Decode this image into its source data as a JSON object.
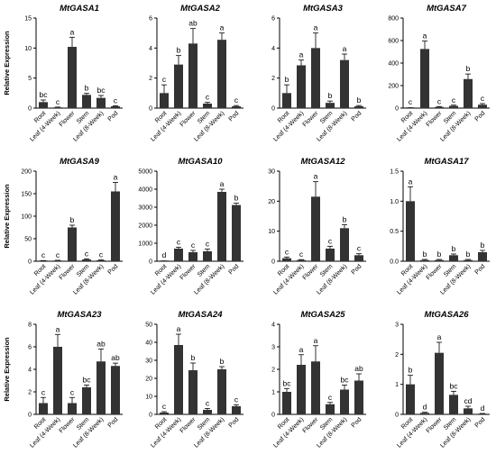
{
  "figure": {
    "ylabel": "Relative Expression",
    "categories": [
      "Root",
      "Leaf (4-Week)",
      "Flower",
      "Stem",
      "Leaf (8-Week)",
      "Pod"
    ]
  },
  "chart_data": [
    {
      "type": "bar",
      "title": "MtGASA1",
      "categories": [
        "Root",
        "Leaf (4-Week)",
        "Flower",
        "Stem",
        "Leaf (8-Week)",
        "Pod"
      ],
      "values": [
        1.0,
        0.12,
        10.2,
        2.2,
        1.7,
        0.3
      ],
      "errors": [
        0.35,
        0.05,
        1.6,
        0.25,
        0.4,
        0.08
      ],
      "labels": [
        "bc",
        "c",
        "a",
        "b",
        "bc",
        "c"
      ],
      "ylim": [
        0,
        15
      ],
      "yticks": [
        0,
        5,
        10,
        15
      ],
      "ylabel": "Relative Expression"
    },
    {
      "type": "bar",
      "title": "MtGASA2",
      "categories": [
        "Root",
        "Leaf (4-Week)",
        "Flower",
        "Stem",
        "Leaf (8-Week)",
        "Pod"
      ],
      "values": [
        1.0,
        2.9,
        4.3,
        0.3,
        4.55,
        0.12
      ],
      "errors": [
        0.55,
        0.6,
        1.0,
        0.08,
        0.45,
        0.05
      ],
      "labels": [
        "c",
        "b",
        "ab",
        "c",
        "a",
        "c"
      ],
      "ylim": [
        0,
        6
      ],
      "yticks": [
        0,
        2,
        4,
        6
      ],
      "ylabel": ""
    },
    {
      "type": "bar",
      "title": "MtGASA3",
      "categories": [
        "Root",
        "Leaf (4-Week)",
        "Flower",
        "Stem",
        "Leaf (8-Week)",
        "Pod"
      ],
      "values": [
        1.0,
        2.85,
        4.0,
        0.35,
        3.2,
        0.12
      ],
      "errors": [
        0.55,
        0.35,
        1.0,
        0.12,
        0.4,
        0.05
      ],
      "labels": [
        "b",
        "a",
        "a",
        "b",
        "a",
        "b"
      ],
      "ylim": [
        0,
        6
      ],
      "yticks": [
        0,
        2,
        4,
        6
      ],
      "ylabel": ""
    },
    {
      "type": "bar",
      "title": "MtGASA7",
      "categories": [
        "Root",
        "Leaf (4-Week)",
        "Flower",
        "Stem",
        "Leaf (8-Week)",
        "Pod"
      ],
      "values": [
        1.0,
        525,
        10,
        20,
        258,
        30
      ],
      "errors": [
        0.5,
        70,
        4,
        6,
        45,
        10
      ],
      "labels": [
        "c",
        "a",
        "c",
        "c",
        "b",
        "c"
      ],
      "ylim": [
        0,
        800
      ],
      "yticks": [
        0,
        200,
        400,
        600,
        800
      ],
      "ylabel": ""
    },
    {
      "type": "bar",
      "title": "MtGASA9",
      "categories": [
        "Root",
        "Leaf (4-Week)",
        "Flower",
        "Stem",
        "Leaf (8-Week)",
        "Pod"
      ],
      "values": [
        1.0,
        1.5,
        75,
        4,
        2,
        155
      ],
      "errors": [
        0.5,
        0.6,
        5,
        1.5,
        0.8,
        20
      ],
      "labels": [
        "c",
        "c",
        "b",
        "c",
        "c",
        "a"
      ],
      "ylim": [
        0,
        200
      ],
      "yticks": [
        0,
        50,
        100,
        150,
        200
      ],
      "ylabel": "Relative Expression"
    },
    {
      "type": "bar",
      "title": "MtGASA10",
      "categories": [
        "Root",
        "Leaf (4-Week)",
        "Flower",
        "Stem",
        "Leaf (8-Week)",
        "Pod"
      ],
      "values": [
        1.0,
        700,
        500,
        550,
        3850,
        3120
      ],
      "errors": [
        0.5,
        80,
        100,
        120,
        150,
        100
      ],
      "labels": [
        "d",
        "c",
        "c",
        "c",
        "a",
        "b"
      ],
      "ylim": [
        0,
        5000
      ],
      "yticks": [
        0,
        1000,
        2000,
        3000,
        4000,
        5000
      ],
      "ylabel": ""
    },
    {
      "type": "bar",
      "title": "MtGASA12",
      "categories": [
        "Root",
        "Leaf (4-Week)",
        "Flower",
        "Stem",
        "Leaf (8-Week)",
        "Pod"
      ],
      "values": [
        1.0,
        0.4,
        21.5,
        4.2,
        11.0,
        2.0
      ],
      "errors": [
        0.4,
        0.15,
        5.0,
        0.8,
        1.2,
        0.5
      ],
      "labels": [
        "c",
        "c",
        "a",
        "c",
        "b",
        "c"
      ],
      "ylim": [
        0,
        30
      ],
      "yticks": [
        0,
        10,
        20,
        30
      ],
      "ylabel": ""
    },
    {
      "type": "bar",
      "title": "MtGASA17",
      "categories": [
        "Root",
        "Leaf (4-Week)",
        "Flower",
        "Stem",
        "Leaf (8-Week)",
        "Pod"
      ],
      "values": [
        1.0,
        0.02,
        0.02,
        0.1,
        0.02,
        0.15
      ],
      "errors": [
        0.24,
        0.01,
        0.01,
        0.02,
        0.01,
        0.03
      ],
      "labels": [
        "a",
        "b",
        "b",
        "b",
        "b",
        "b"
      ],
      "ylim": [
        0,
        1.5
      ],
      "yticks": [
        0,
        0.5,
        1.0,
        1.5
      ],
      "ylabel": ""
    },
    {
      "type": "bar",
      "title": "MtGASA23",
      "categories": [
        "Root",
        "Leaf (4-Week)",
        "Flower",
        "Stem",
        "Leaf (8-Week)",
        "Pod"
      ],
      "values": [
        1.0,
        6.0,
        1.0,
        2.4,
        4.7,
        4.3
      ],
      "errors": [
        0.5,
        1.1,
        0.5,
        0.2,
        1.1,
        0.25
      ],
      "labels": [
        "c",
        "a",
        "c",
        "bc",
        "ab",
        "ab"
      ],
      "ylim": [
        0,
        8
      ],
      "yticks": [
        0,
        2,
        4,
        6,
        8
      ],
      "ylabel": "Relative Expression"
    },
    {
      "type": "bar",
      "title": "MtGASA24",
      "categories": [
        "Root",
        "Leaf (4-Week)",
        "Flower",
        "Stem",
        "Leaf (8-Week)",
        "Pod"
      ],
      "values": [
        1.0,
        38.5,
        24.5,
        2.5,
        25,
        4.5
      ],
      "errors": [
        0.5,
        6,
        4,
        0.8,
        1.5,
        0.8
      ],
      "labels": [
        "c",
        "a",
        "b",
        "c",
        "b",
        "c"
      ],
      "ylim": [
        0,
        50
      ],
      "yticks": [
        0,
        10,
        20,
        30,
        40,
        50
      ],
      "ylabel": ""
    },
    {
      "type": "bar",
      "title": "MtGASA25",
      "categories": [
        "Root",
        "Leaf (4-Week)",
        "Flower",
        "Stem",
        "Leaf (8-Week)",
        "Pod"
      ],
      "values": [
        1.0,
        2.2,
        2.35,
        0.45,
        1.1,
        1.5
      ],
      "errors": [
        0.15,
        0.45,
        0.7,
        0.08,
        0.2,
        0.3
      ],
      "labels": [
        "bc",
        "a",
        "a",
        "c",
        "bc",
        "ab"
      ],
      "ylim": [
        0,
        4
      ],
      "yticks": [
        0,
        1,
        2,
        3,
        4
      ],
      "ylabel": ""
    },
    {
      "type": "bar",
      "title": "MtGASA26",
      "categories": [
        "Root",
        "Leaf (4-Week)",
        "Flower",
        "Stem",
        "Leaf (8-Week)",
        "Pod"
      ],
      "values": [
        1.0,
        0.05,
        2.05,
        0.65,
        0.2,
        0.02
      ],
      "errors": [
        0.3,
        0.02,
        0.35,
        0.12,
        0.07,
        0.01
      ],
      "labels": [
        "b",
        "d",
        "a",
        "bc",
        "cd",
        "d"
      ],
      "ylim": [
        0,
        3
      ],
      "yticks": [
        0,
        1,
        2,
        3
      ],
      "ylabel": ""
    }
  ]
}
